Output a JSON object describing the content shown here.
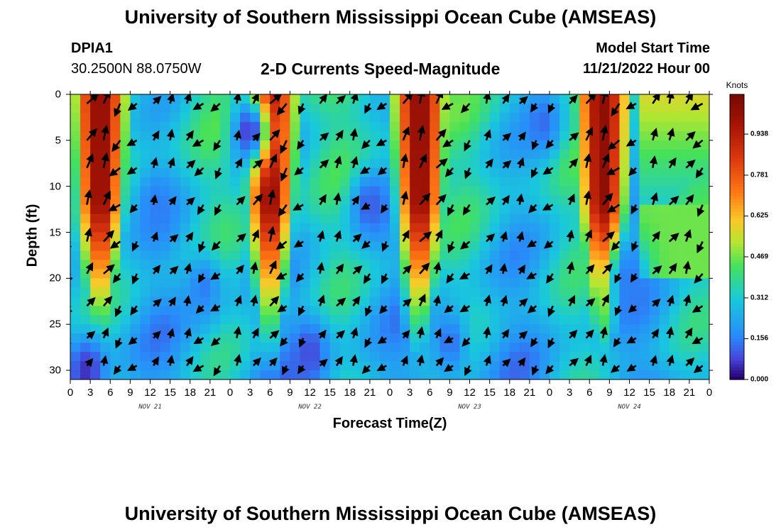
{
  "header": {
    "title": "University of Southern Mississippi Ocean Cube (AMSEAS)",
    "station": "DPIA1",
    "coords": "30.2500N  88.0750W",
    "subtitle": "2-D Currents Speed-Magnitude",
    "model_label": "Model Start Time",
    "model_time": "11/21/2022 Hour 00"
  },
  "footer": {
    "title": "University of Southern Mississippi Ocean Cube (AMSEAS)"
  },
  "chart_data": {
    "type": "heatmap",
    "title": "2-D Currents Speed-Magnitude",
    "xlabel": "Forecast Time(Z)",
    "ylabel": "Depth (ft)",
    "x_tick_labels": [
      "0",
      "3",
      "6",
      "9",
      "12",
      "15",
      "18",
      "21",
      "0",
      "3",
      "6",
      "9",
      "12",
      "15",
      "18",
      "21",
      "0",
      "3",
      "6",
      "9",
      "12",
      "15",
      "18",
      "21",
      "0",
      "3",
      "6",
      "9",
      "12",
      "15",
      "18",
      "21",
      "0"
    ],
    "x_range_hours": [
      0,
      96
    ],
    "day_labels": [
      {
        "label": "NOV 21",
        "hour": 12
      },
      {
        "label": "NOV 22",
        "hour": 36
      },
      {
        "label": "NOV 23",
        "hour": 60
      },
      {
        "label": "NOV 24",
        "hour": 84
      }
    ],
    "y_ticks": [
      0,
      5,
      10,
      15,
      20,
      25,
      30
    ],
    "y_range": [
      0,
      31
    ],
    "y_inverted": true,
    "colorbar": {
      "unit": "Knots",
      "ticks": [
        "0.000",
        "0.156",
        "0.312",
        "0.469",
        "0.625",
        "0.781",
        "0.938"
      ],
      "range": [
        0,
        1.09
      ]
    },
    "speed_maxima_hour": [
      4.5,
      30,
      52.5,
      80
    ],
    "arrows_hours": [
      0,
      2.5,
      5,
      7.5,
      10,
      12.5,
      15,
      17.5,
      20,
      22.5,
      25,
      27.5,
      30,
      32.5,
      35,
      37.5,
      40,
      42.5,
      45,
      47.5,
      50,
      52.5,
      55,
      57.5,
      60,
      62.5,
      65,
      67.5,
      70,
      72.5,
      75,
      77.5,
      80,
      82.5,
      85,
      87.5,
      90,
      92.5,
      95
    ],
    "arrows_depths_ft": [
      1,
      5,
      8,
      12,
      16,
      19.5,
      23,
      26.5,
      29.5
    ]
  }
}
